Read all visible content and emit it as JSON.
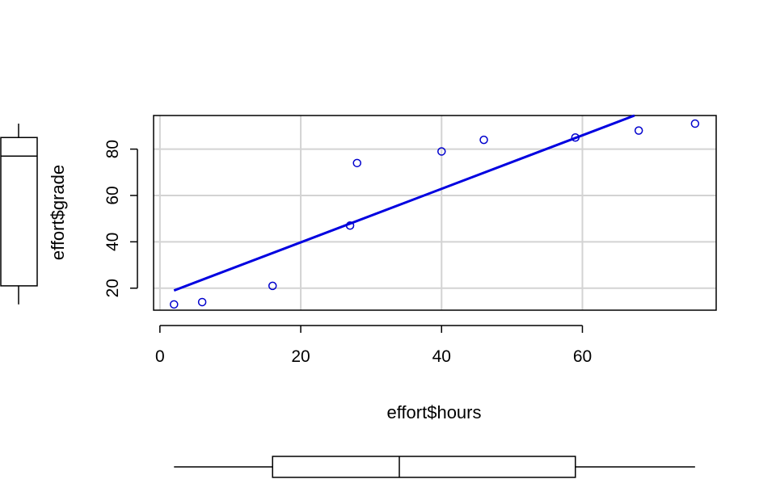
{
  "chart_data": {
    "type": "scatter",
    "xlabel": "effort$hours",
    "ylabel": "effort$grade",
    "xlim": [
      -0.9,
      79
    ],
    "ylim": [
      10.5,
      94.5
    ],
    "xticks": [
      "0",
      "20",
      "40",
      "60"
    ],
    "yticks": [
      "20",
      "40",
      "60",
      "80"
    ],
    "grid": true,
    "points": [
      {
        "x": 2,
        "y": 13
      },
      {
        "x": 6,
        "y": 14
      },
      {
        "x": 16,
        "y": 21
      },
      {
        "x": 27,
        "y": 47
      },
      {
        "x": 28,
        "y": 74
      },
      {
        "x": 40,
        "y": 79
      },
      {
        "x": 46,
        "y": 84
      },
      {
        "x": 59,
        "y": 85
      },
      {
        "x": 68,
        "y": 88
      },
      {
        "x": 76,
        "y": 91
      }
    ],
    "regression_line": {
      "x_start": 2,
      "y_start": 19,
      "x_end": 67.4,
      "y_end": 94.5
    },
    "x_boxplot": {
      "min": 2,
      "q1": 16,
      "median": 34,
      "q3": 59,
      "max": 76
    },
    "y_boxplot": {
      "min": 13,
      "q1": 21,
      "median": 77,
      "q3": 85,
      "max": 91
    },
    "colors": {
      "points": "#0000cd",
      "line": "#0000e0",
      "grid": "#d3d3d3",
      "axis": "#000000"
    }
  }
}
